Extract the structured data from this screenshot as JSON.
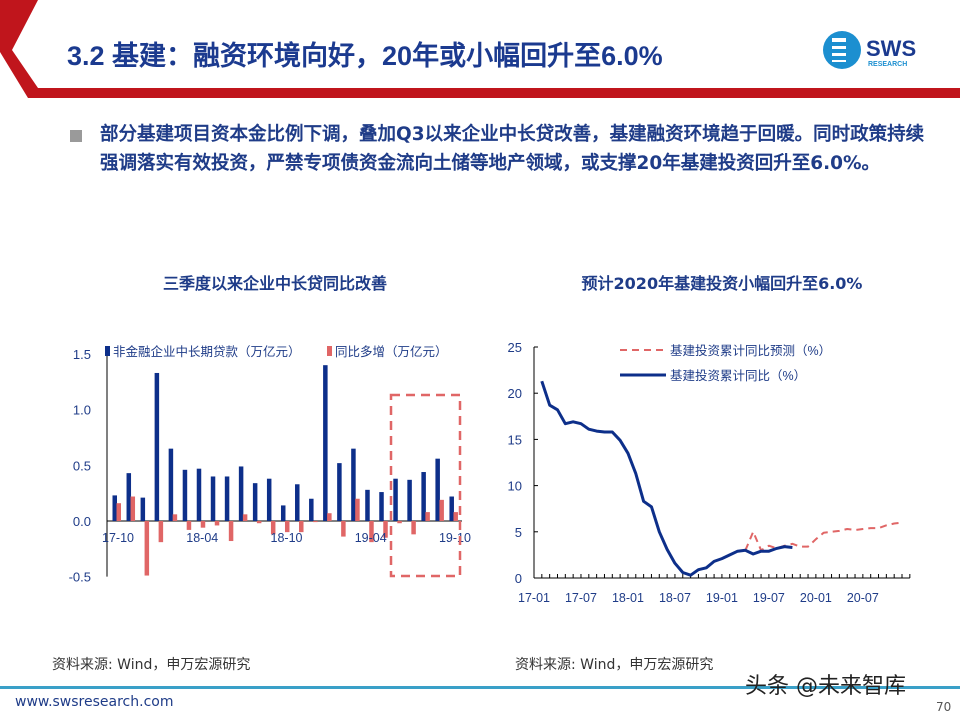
{
  "header": {
    "title": "3.2 基建：融资环境向好，20年或小幅回升至6.0%",
    "logo_text": "SWS",
    "logo_sub": "RESEARCH"
  },
  "body": {
    "text": "部分基建项目资本金比例下调，叠加Q3以来企业中长贷改善，基建融资环境趋于回暖。同时政策持续强调落实有效投资，严禁专项债资金流向土储等地产领域，或支撑20年基建投资回升至6.0%。"
  },
  "colors": {
    "navy": "#1a3a8c",
    "red_accent": "#c0151c",
    "salmon": "#e06666",
    "teal_line": "#3aa0c8"
  },
  "chart_data": [
    {
      "type": "bar",
      "title": "三季度以来企业中长贷同比改善",
      "categories": [
        "17-10",
        "17-11",
        "17-12",
        "18-01",
        "18-02",
        "18-03",
        "18-04",
        "18-05",
        "18-06",
        "18-07",
        "18-08",
        "18-09",
        "18-10",
        "18-11",
        "18-12",
        "19-01",
        "19-02",
        "19-03",
        "19-04",
        "19-05",
        "19-06",
        "19-07",
        "19-08",
        "19-09",
        "19-10"
      ],
      "tick_labels": [
        "17-10",
        "18-04",
        "18-10",
        "19-04",
        "19-10"
      ],
      "yticks": [
        "1.5",
        "1.0",
        "0.5",
        "0.0",
        "-0.5"
      ],
      "ylim": [
        -0.5,
        1.5
      ],
      "legend": "top",
      "series": [
        {
          "name": "非金融企业中长期贷款（万亿元）",
          "color": "#0d2f8a",
          "values": [
            0.23,
            0.43,
            0.21,
            1.33,
            0.65,
            0.46,
            0.47,
            0.4,
            0.4,
            0.49,
            0.34,
            0.38,
            0.14,
            0.33,
            0.2,
            1.4,
            0.52,
            0.65,
            0.28,
            0.26,
            0.38,
            0.37,
            0.44,
            0.56,
            0.22
          ]
        },
        {
          "name": "同比多增（万亿元）",
          "color": "#e06666",
          "values": [
            0.16,
            0.22,
            -0.49,
            -0.19,
            0.06,
            -0.08,
            -0.06,
            -0.04,
            -0.18,
            0.06,
            -0.02,
            -0.12,
            -0.1,
            -0.1,
            -0.01,
            0.07,
            -0.14,
            0.2,
            -0.19,
            -0.15,
            -0.02,
            -0.12,
            0.08,
            0.19,
            0.08
          ]
        }
      ],
      "annotation": "dashed box highlighting 19-06 to 19-10"
    },
    {
      "type": "line",
      "title": "预计2020年基建投资小幅回升至6.0%",
      "x_range": [
        "17-01",
        "20-12"
      ],
      "tick_labels": [
        "17-01",
        "17-07",
        "18-01",
        "18-07",
        "19-01",
        "19-07",
        "20-01",
        "20-07"
      ],
      "yticks": [
        "25",
        "20",
        "15",
        "10",
        "5",
        "0"
      ],
      "ylim": [
        0,
        25
      ],
      "legend": "top-right",
      "series": [
        {
          "name": "基建投资累计同比预测（%）",
          "style": "dashed",
          "color": "#e06666",
          "x": [
            "19-04",
            "19-05",
            "19-06",
            "19-07",
            "19-08",
            "19-09",
            "19-10",
            "19-11",
            "19-12",
            "20-01",
            "20-02",
            "20-03",
            "20-04",
            "20-05",
            "20-06",
            "20-07",
            "20-08",
            "20-09",
            "20-10",
            "20-11",
            "20-12"
          ],
          "values": [
            3.0,
            5.0,
            3.0,
            3.5,
            3.2,
            3.5,
            3.7,
            3.4,
            3.4,
            4.2,
            4.9,
            5.0,
            5.1,
            5.3,
            5.2,
            5.3,
            5.4,
            5.4,
            5.7,
            5.9,
            6.0
          ]
        },
        {
          "name": "基建投资累计同比（%）",
          "style": "solid",
          "color": "#0d2f8a",
          "x": [
            "17-02",
            "17-03",
            "17-04",
            "17-05",
            "17-06",
            "17-07",
            "17-08",
            "17-09",
            "17-10",
            "17-11",
            "17-12",
            "18-01",
            "18-02",
            "18-03",
            "18-04",
            "18-05",
            "18-06",
            "18-07",
            "18-08",
            "18-09",
            "18-10",
            "18-11",
            "18-12",
            "19-01",
            "19-02",
            "19-03",
            "19-04",
            "19-05",
            "19-06",
            "19-07",
            "19-08",
            "19-09",
            "19-10"
          ],
          "values": [
            21.3,
            18.7,
            18.2,
            16.7,
            16.9,
            16.7,
            16.1,
            15.9,
            15.8,
            15.8,
            14.9,
            13.5,
            11.3,
            8.3,
            7.7,
            5.0,
            3.1,
            1.6,
            0.6,
            0.3,
            0.9,
            1.1,
            1.8,
            2.1,
            2.5,
            2.9,
            3.0,
            2.6,
            2.9,
            2.9,
            3.2,
            3.4,
            3.3
          ]
        }
      ]
    }
  ],
  "footer": {
    "source_left": "资料来源: Wind，申万宏源研究",
    "source_right": "资料来源: Wind，申万宏源研究",
    "url": "www.swsresearch.com",
    "page": "70",
    "watermark": "头条 @未来智库"
  }
}
